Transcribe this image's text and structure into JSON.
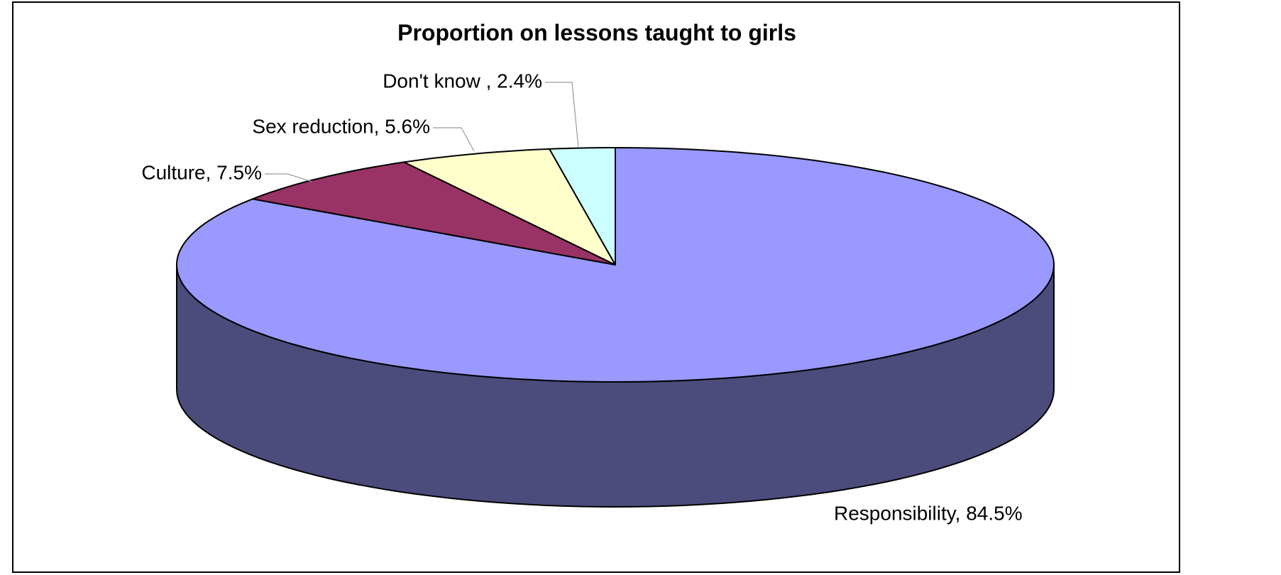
{
  "chart_data": {
    "type": "pie",
    "title": "Proportion on lessons taught to girls",
    "three_d": true,
    "slices": [
      {
        "name": "Responsibility",
        "value": 84.5,
        "label": "Responsibility, 84.5%",
        "color": "#9999ff",
        "side_color": "#4b4c7c"
      },
      {
        "name": "Culture",
        "value": 7.5,
        "label": "Culture, 7.5%",
        "color": "#993366",
        "side_color": "#5e1f3f"
      },
      {
        "name": "Sex reduction",
        "value": 5.6,
        "label": "Sex reduction, 5.6%",
        "color": "#ffffcc",
        "side_color": "#bdbd95"
      },
      {
        "name": "Don't know",
        "value": 2.4,
        "label": "Don't know , 2.4%",
        "color": "#ccffff",
        "side_color": "#95bdbd"
      }
    ]
  }
}
